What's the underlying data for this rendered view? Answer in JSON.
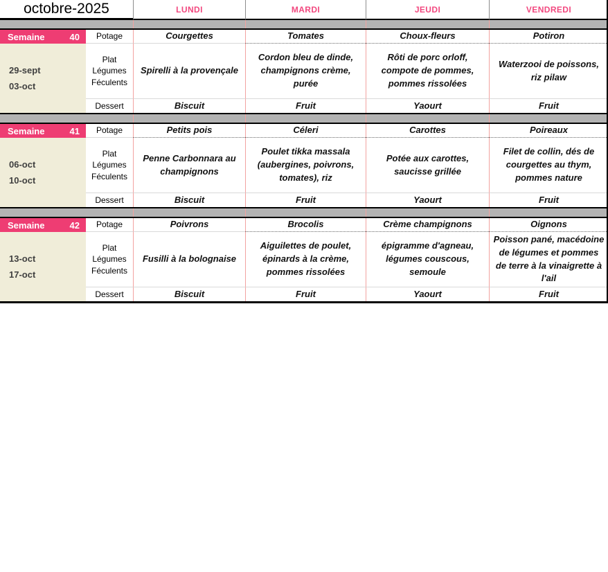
{
  "title": "octobre-2025",
  "days": [
    "LUNDI",
    "MARDI",
    "JEUDI",
    "VENDREDI"
  ],
  "row_labels": {
    "potage": "Potage",
    "plat": [
      "Plat",
      "Légumes",
      "Féculents"
    ],
    "dessert": "Dessert"
  },
  "weeks": [
    {
      "label": "Semaine",
      "number": "40",
      "dates": [
        "29-sept",
        "03-oct"
      ],
      "potage": [
        "Courgettes",
        "Tomates",
        "Choux-fleurs",
        "Potiron"
      ],
      "plat": [
        "Spirelli à la provençale",
        "Cordon bleu de dinde, champignons crème, purée",
        "Rôti de porc orloff, compote de pommes, pommes rissolées",
        "Waterzooi de poissons, riz pilaw"
      ],
      "dessert": [
        "Biscuit",
        "Fruit",
        "Yaourt",
        "Fruit"
      ]
    },
    {
      "label": "Semaine",
      "number": "41",
      "dates": [
        "06-oct",
        "10-oct"
      ],
      "potage": [
        "Petits pois",
        "Céleri",
        "Carottes",
        "Poireaux"
      ],
      "plat": [
        "Penne Carbonnara au champignons",
        "Poulet tikka massala (aubergines, poivrons, tomates), riz",
        "Potée aux carottes, saucisse grillée",
        "Filet de collin, dés de courgettes au thym, pommes nature"
      ],
      "dessert": [
        "Biscuit",
        "Fruit",
        "Yaourt",
        "Fruit"
      ]
    },
    {
      "label": "Semaine",
      "number": "42",
      "dates": [
        "13-oct",
        "17-oct"
      ],
      "potage": [
        "Poivrons",
        "Brocolis",
        "Crème champignons",
        "Oignons"
      ],
      "plat": [
        "Fusilli à la bolognaise",
        "Aiguilettes de poulet, épinards à la crème, pommes rissolées",
        "épigramme d'agneau, légumes couscous, semoule",
        "Poisson pané, macédoine de légumes et pommes de terre à la vinaigrette à l'ail"
      ],
      "dessert": [
        "Biscuit",
        "Fruit",
        "Yaourt",
        "Fruit"
      ]
    }
  ],
  "colors": {
    "accent_pink": "#EE3D73",
    "day_header_pink": "#F2487F",
    "date_column_cream": "#F0EDD9",
    "separator_gray": "#B3B3B3",
    "grid_line_pink": "#F2A2A0",
    "grid_line_gray": "#D9D9D9",
    "border_black": "#000000",
    "date_text": "#404040"
  }
}
